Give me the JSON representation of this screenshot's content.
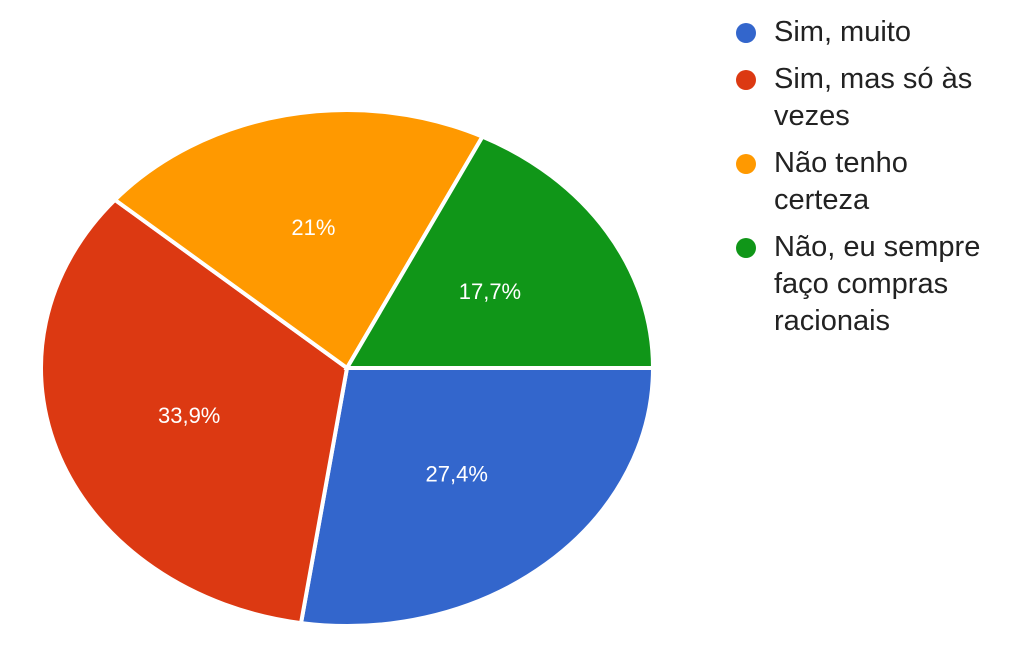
{
  "chart_data": {
    "type": "pie",
    "categories": [
      "Sim, muito",
      "Sim, mas só às vezes",
      "Não tenho certeza",
      "Não, eu sempre faço compras racionais"
    ],
    "values": [
      27.4,
      33.9,
      21,
      17.7
    ],
    "value_labels": [
      "27,4%",
      "33,9%",
      "21%",
      "17,7%"
    ],
    "colors": [
      "#3366cc",
      "#dc3912",
      "#ff9900",
      "#109618"
    ],
    "legend": "right"
  }
}
